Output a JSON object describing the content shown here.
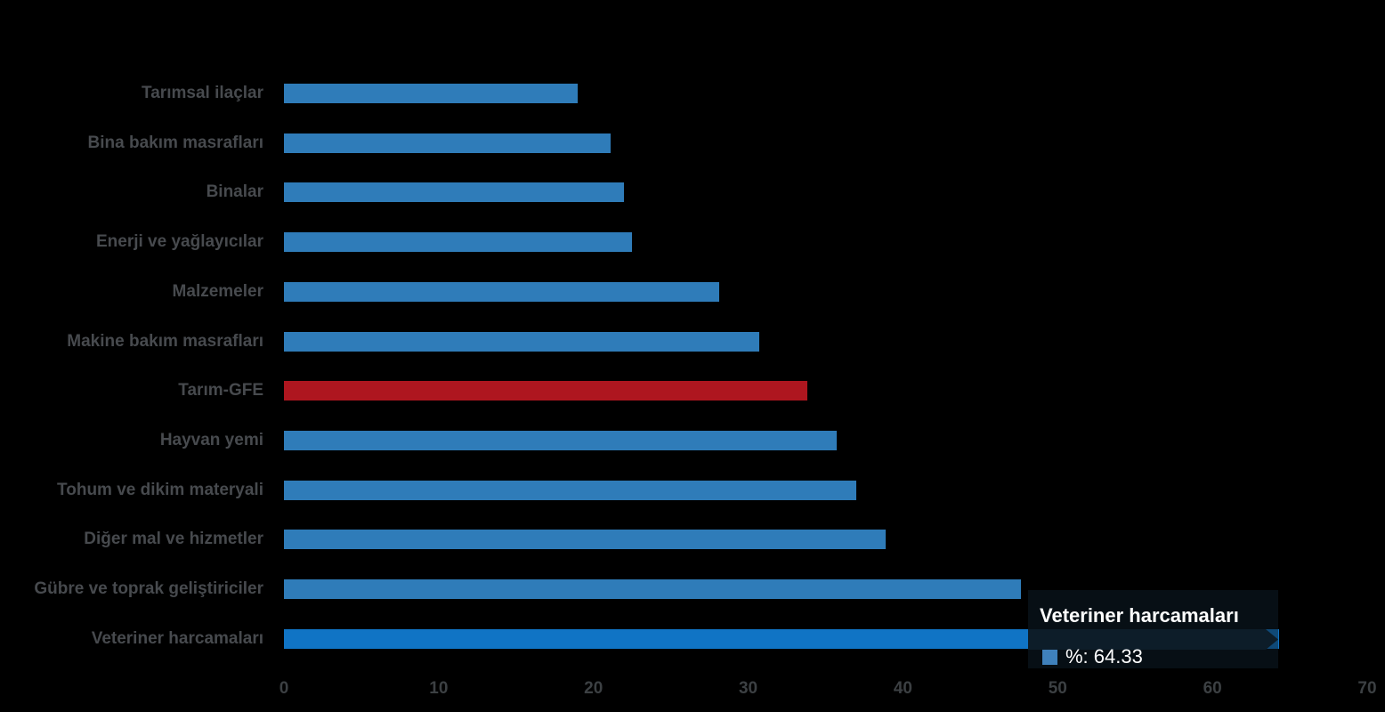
{
  "chart_data": {
    "type": "bar",
    "orientation": "horizontal",
    "categories": [
      "Tarımsal ilaçlar",
      "Bina bakım masrafları",
      "Binalar",
      "Enerji  ve yağlayıcılar",
      "Malzemeler",
      "Makine bakım masrafları",
      "Tarım-GFE",
      "Hayvan yemi",
      "Tohum ve dikim materyali",
      "Diğer mal ve hizmetler",
      "Gübre ve toprak geliştiriciler",
      "Veteriner harcamaları"
    ],
    "series": [
      {
        "name": "%",
        "values": [
          19.0,
          21.1,
          22.0,
          22.5,
          28.1,
          30.7,
          33.8,
          35.7,
          37.0,
          38.9,
          47.6,
          64.33
        ]
      }
    ],
    "special_category": "Tarım-GFE",
    "highlighted_category": "Veteriner harcamaları",
    "xlabel": "",
    "ylabel": "",
    "title": "",
    "xlim": [
      0,
      70
    ],
    "xticks": [
      0,
      10,
      20,
      30,
      40,
      50,
      60,
      70
    ],
    "grid": false,
    "legend": false
  },
  "tooltip": {
    "title": "Veteriner harcamaları",
    "series_label": "%",
    "value": "64.33",
    "text": "%: 64.33"
  },
  "colors": {
    "background": "#000000",
    "bar": "#2f7cb9",
    "bar_hover": "#1074c5",
    "bar_special": "#ae161f",
    "tooltip_bg": "#0d1d29",
    "tooltip_marker": "#3f81bc",
    "tooltip_text": "#ffffff",
    "label": "#474a4e",
    "tick": "#3c4043"
  }
}
